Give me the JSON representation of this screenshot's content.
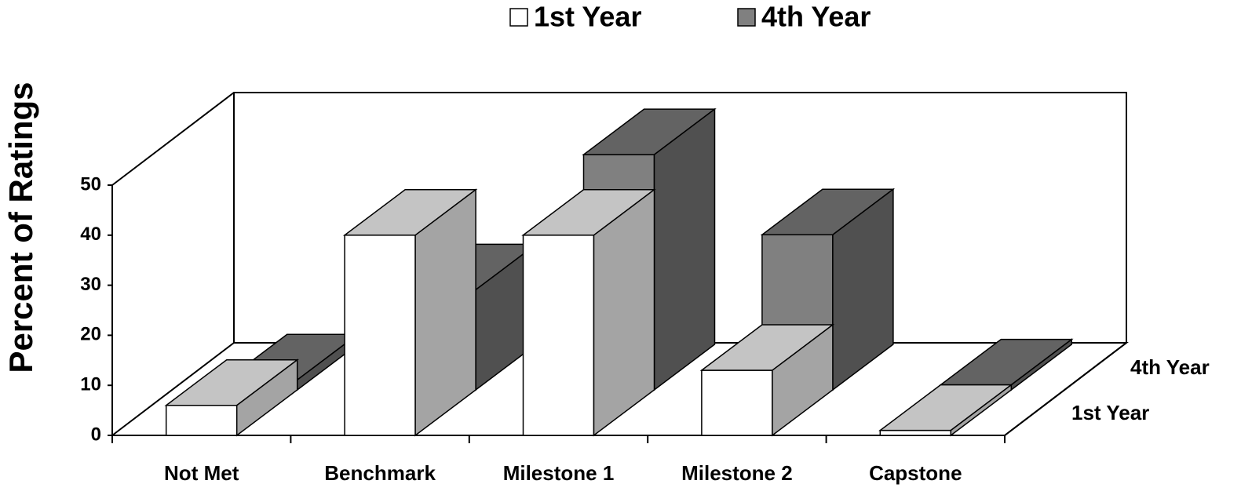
{
  "chart_data": {
    "type": "bar3d",
    "y_label": "Percent of Ratings",
    "categories": [
      "Not Met",
      "Benchmark",
      "Milestone 1",
      "Milestone 2",
      "Capstone"
    ],
    "series": [
      {
        "name": "1st Year",
        "color": "#ffffff",
        "values": [
          6,
          40,
          40,
          13,
          1
        ]
      },
      {
        "name": "4th Year",
        "color": "#808080",
        "values": [
          2,
          20,
          47,
          31,
          1
        ]
      }
    ],
    "ylim": [
      0,
      50
    ],
    "yticks": [
      0,
      10,
      20,
      30,
      40,
      50
    ]
  }
}
